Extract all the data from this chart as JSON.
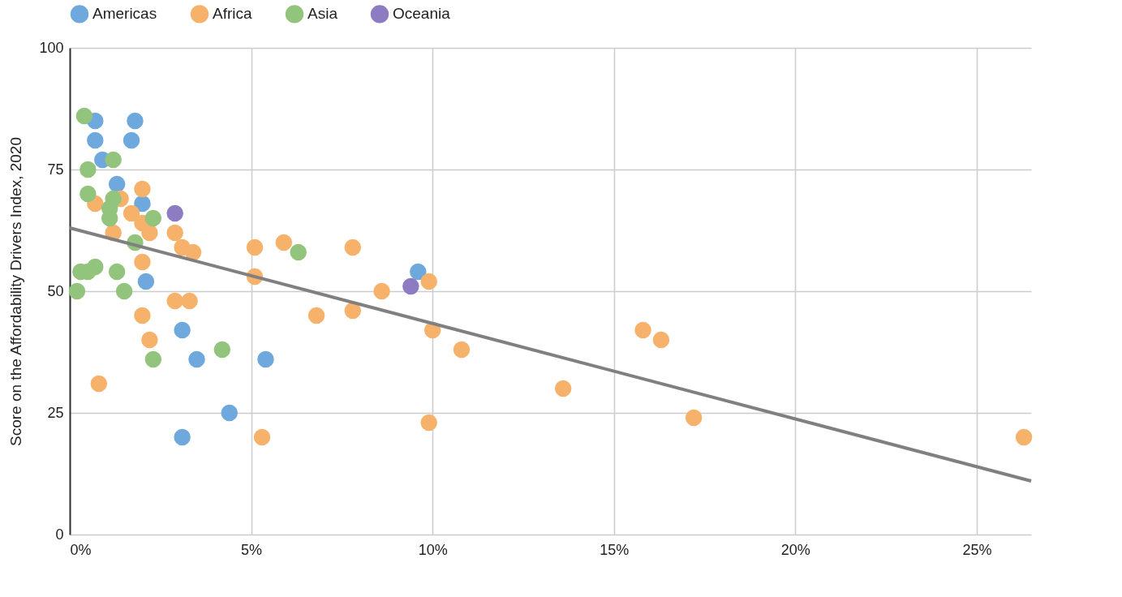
{
  "chart_data": {
    "type": "scatter",
    "ylabel": "Score on the Affordability Drivers Index, 2020",
    "xlim": [
      0,
      26.5
    ],
    "ylim": [
      0,
      100
    ],
    "xticks": [
      {
        "value": 0,
        "label": "0%"
      },
      {
        "value": 5,
        "label": "5%"
      },
      {
        "value": 10,
        "label": "10%"
      },
      {
        "value": 15,
        "label": "15%"
      },
      {
        "value": 20,
        "label": "20%"
      },
      {
        "value": 25,
        "label": "25%"
      }
    ],
    "yticks": [
      0,
      25,
      50,
      75,
      100
    ],
    "grid": true,
    "legend": "top",
    "marker": "circle",
    "series": [
      {
        "name": "Americas",
        "color": "#6fa8dc",
        "x": [
          0.7,
          0.7,
          1.8,
          1.7,
          0.9,
          1.3,
          2.0,
          2.1,
          3.1,
          3.5,
          5.4,
          4.4,
          3.1,
          9.6
        ],
        "values": [
          85,
          81,
          85,
          81,
          77,
          72,
          68,
          52,
          42,
          36,
          36,
          25,
          20,
          54
        ]
      },
      {
        "name": "Africa",
        "color": "#f6b26b",
        "x": [
          0.7,
          null,
          0.8,
          1.2,
          1.4,
          1.7,
          2.0,
          2.0,
          2.2,
          2.0,
          2.0,
          2.2,
          2.9,
          3.1,
          3.4,
          2.9,
          3.3,
          5.1,
          5.1,
          5.9,
          7.8,
          8.6,
          9.9,
          10.0,
          10.8,
          7.8,
          6.8,
          9.9,
          5.3,
          13.6,
          15.8,
          16.3,
          17.2,
          26.3
        ],
        "values": [
          68,
          null,
          31,
          62,
          69,
          66,
          71,
          64,
          62,
          56,
          45,
          40,
          62,
          59,
          58,
          48,
          48,
          59,
          53,
          60,
          59,
          50,
          52,
          42,
          38,
          46,
          45,
          23,
          20,
          30,
          42,
          40,
          24,
          20
        ]
      },
      {
        "name": "Asia",
        "color": "#93c47d",
        "x": [
          0.4,
          0.5,
          0.5,
          1.2,
          1.1,
          1.1,
          1.2,
          1.8,
          2.3,
          1.3,
          1.5,
          0.3,
          0.7,
          0.5,
          0.2,
          2.3,
          4.2,
          6.3
        ],
        "values": [
          86,
          75,
          70,
          77,
          65,
          67,
          69,
          60,
          65,
          54,
          50,
          54,
          55,
          54,
          50,
          36,
          38,
          58
        ]
      },
      {
        "name": "Oceania",
        "color": "#8e7cc3",
        "x": [
          2.9,
          9.4
        ],
        "values": [
          66,
          51
        ]
      },
      {
        "type": "line",
        "color": "#808080",
        "x": [
          0,
          26.5
        ],
        "values": [
          63,
          11
        ],
        "marker": "none"
      }
    ]
  }
}
